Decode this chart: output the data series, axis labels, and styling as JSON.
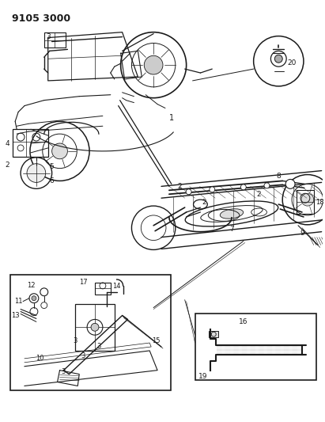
{
  "title": "9105 3000",
  "bg_color": "#ffffff",
  "line_color": "#1a1a1a",
  "title_fontsize": 9,
  "fig_width": 4.11,
  "fig_height": 5.33,
  "dpi": 100
}
